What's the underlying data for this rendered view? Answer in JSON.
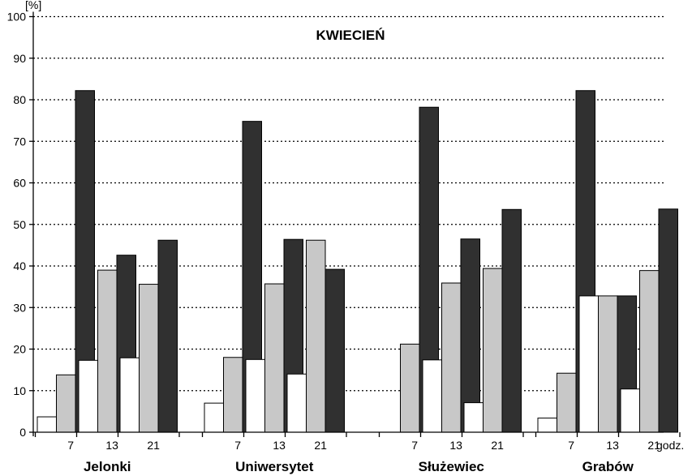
{
  "chart_data": {
    "type": "bar",
    "title": "KWIECIEŃ",
    "ylabel": "[%]",
    "xunit": "godz.",
    "ylim": [
      0,
      100
    ],
    "yticks": [
      0,
      10,
      20,
      30,
      40,
      50,
      60,
      70,
      80,
      90,
      100
    ],
    "grid": true,
    "series_colors": [
      "#ffffff",
      "#c8c8c8",
      "#303030"
    ],
    "groups": [
      {
        "name": "Jelonki",
        "hours": [
          {
            "label": "7",
            "values": [
              3.7,
              13.8,
              82.2
            ]
          },
          {
            "label": "13",
            "values": [
              17.3,
              39.0,
              42.6
            ]
          },
          {
            "label": "21",
            "values": [
              17.9,
              35.6,
              46.2
            ]
          }
        ]
      },
      {
        "name": "Uniwersytet",
        "hours": [
          {
            "label": "7",
            "values": [
              7.0,
              18.0,
              74.8
            ]
          },
          {
            "label": "13",
            "values": [
              17.5,
              35.7,
              46.4
            ]
          },
          {
            "label": "21",
            "values": [
              14.0,
              46.2,
              39.2
            ]
          }
        ]
      },
      {
        "name": "Służewiec",
        "hours": [
          {
            "label": "7",
            "values": [
              0,
              21.2,
              78.2
            ]
          },
          {
            "label": "13",
            "values": [
              17.4,
              35.9,
              46.5
            ]
          },
          {
            "label": "21",
            "values": [
              7.1,
              39.4,
              53.6
            ]
          }
        ]
      },
      {
        "name": "Grabów",
        "hours": [
          {
            "label": "7",
            "values": [
              3.4,
              14.2,
              82.2
            ]
          },
          {
            "label": "13",
            "values": [
              32.8,
              32.8,
              32.8
            ]
          },
          {
            "label": "21",
            "values": [
              10.4,
              38.9,
              53.7
            ]
          }
        ]
      }
    ]
  }
}
